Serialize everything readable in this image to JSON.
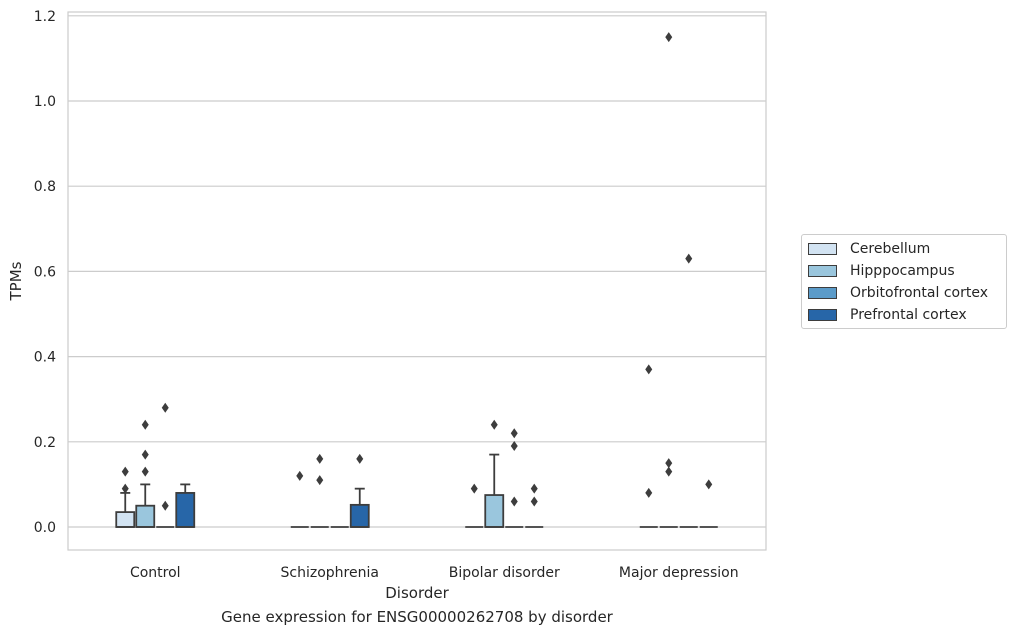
{
  "caption": "Gene expression for ENSG00000262708 by disorder",
  "chart_data": {
    "type": "box",
    "title": "",
    "xlabel": "Disorder",
    "ylabel": "TPMs",
    "ylim": [
      -0.055,
      1.21
    ],
    "yticks": [
      0.0,
      0.2,
      0.4,
      0.6,
      0.8,
      1.0,
      1.2
    ],
    "ytick_labels": [
      "0.0",
      "0.2",
      "0.4",
      "0.6",
      "0.8",
      "1.0",
      "1.2"
    ],
    "categories": [
      "Control",
      "Schizophrenia",
      "Bipolar disorder",
      "Major depression"
    ],
    "grid": "horizontal",
    "legend_position": "right",
    "series": [
      {
        "name": "Cerebellum",
        "color": "#d2e3f2",
        "boxes": [
          {
            "q1": 0.0,
            "median": 0.0,
            "q3": 0.035,
            "whisker_low": 0.0,
            "whisker_high": 0.08,
            "outliers": [
              0.13,
              0.09
            ]
          },
          {
            "q1": 0.0,
            "median": 0.0,
            "q3": 0.0,
            "whisker_low": 0.0,
            "whisker_high": 0.0,
            "outliers": [
              0.12
            ]
          },
          {
            "q1": 0.0,
            "median": 0.0,
            "q3": 0.0,
            "whisker_low": 0.0,
            "whisker_high": 0.0,
            "outliers": [
              0.09
            ]
          },
          {
            "q1": 0.0,
            "median": 0.0,
            "q3": 0.0,
            "whisker_low": 0.0,
            "whisker_high": 0.0,
            "outliers": [
              0.37,
              0.08
            ]
          }
        ]
      },
      {
        "name": "Hipppocampus",
        "color": "#9ac6dd",
        "boxes": [
          {
            "q1": 0.0,
            "median": 0.0,
            "q3": 0.05,
            "whisker_low": 0.0,
            "whisker_high": 0.1,
            "outliers": [
              0.24,
              0.17,
              0.13
            ]
          },
          {
            "q1": 0.0,
            "median": 0.0,
            "q3": 0.0,
            "whisker_low": 0.0,
            "whisker_high": 0.0,
            "outliers": [
              0.16,
              0.11
            ]
          },
          {
            "q1": 0.0,
            "median": 0.0,
            "q3": 0.075,
            "whisker_low": 0.0,
            "whisker_high": 0.17,
            "outliers": [
              0.24
            ]
          },
          {
            "q1": 0.0,
            "median": 0.0,
            "q3": 0.0,
            "whisker_low": 0.0,
            "whisker_high": 0.0,
            "outliers": [
              1.15,
              0.15,
              0.13
            ]
          }
        ]
      },
      {
        "name": "Orbitofrontal cortex",
        "color": "#5b9bc9",
        "boxes": [
          {
            "q1": 0.0,
            "median": 0.0,
            "q3": 0.0,
            "whisker_low": 0.0,
            "whisker_high": 0.0,
            "outliers": [
              0.28,
              0.05
            ]
          },
          {
            "q1": 0.0,
            "median": 0.0,
            "q3": 0.0,
            "whisker_low": 0.0,
            "whisker_high": 0.0,
            "outliers": []
          },
          {
            "q1": 0.0,
            "median": 0.0,
            "q3": 0.0,
            "whisker_low": 0.0,
            "whisker_high": 0.0,
            "outliers": [
              0.22,
              0.19,
              0.06
            ]
          },
          {
            "q1": 0.0,
            "median": 0.0,
            "q3": 0.0,
            "whisker_low": 0.0,
            "whisker_high": 0.0,
            "outliers": [
              0.63
            ]
          }
        ]
      },
      {
        "name": "Prefrontal cortex",
        "color": "#2766a8",
        "boxes": [
          {
            "q1": 0.0,
            "median": 0.0,
            "q3": 0.08,
            "whisker_low": 0.0,
            "whisker_high": 0.1,
            "outliers": []
          },
          {
            "q1": 0.0,
            "median": 0.0,
            "q3": 0.052,
            "whisker_low": 0.0,
            "whisker_high": 0.09,
            "outliers": [
              0.16
            ]
          },
          {
            "q1": 0.0,
            "median": 0.0,
            "q3": 0.0,
            "whisker_low": 0.0,
            "whisker_high": 0.0,
            "outliers": [
              0.09,
              0.06
            ]
          },
          {
            "q1": 0.0,
            "median": 0.0,
            "q3": 0.0,
            "whisker_low": 0.0,
            "whisker_high": 0.0,
            "outliers": [
              0.1
            ]
          }
        ]
      }
    ]
  }
}
